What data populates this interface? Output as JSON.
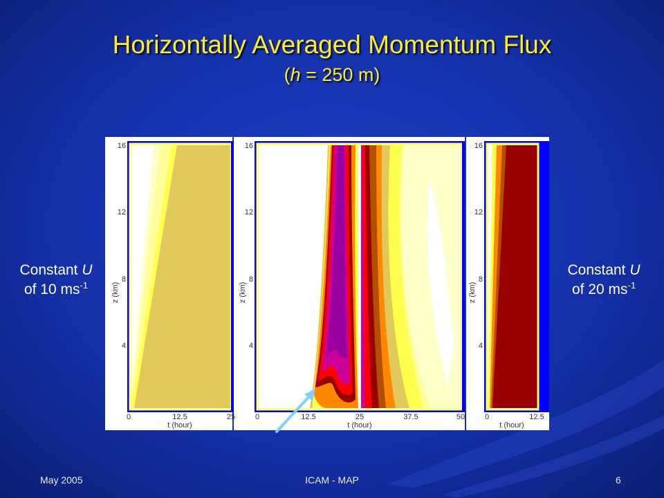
{
  "slide": {
    "title": "Horizontally Averaged Momentum Flux",
    "subtitle_prefix": "(",
    "subtitle_var": "h",
    "subtitle_suffix": " = 250 m)",
    "footer_left": "May 2005",
    "footer_center": "ICAM - MAP",
    "footer_right": "6"
  },
  "labels": {
    "left": {
      "line1_text": "Constant ",
      "line1_var": "U",
      "line2_text": "of 10 ms",
      "line2_sup": "-1"
    },
    "right": {
      "line1_text": "Constant ",
      "line1_var": "U",
      "line2_text": "of 20 ms",
      "line2_sup": "-1"
    }
  },
  "figure": {
    "y_axis_label": "z (km)",
    "x_axis_label": "t (hour)",
    "y_ticks": [
      "16",
      "12",
      "8",
      "4"
    ],
    "panels": [
      {
        "name": "panel-left",
        "x_ticks": [
          "0",
          "12.5",
          "25"
        ]
      },
      {
        "name": "panel-middle",
        "x_ticks": [
          "0",
          "12.5",
          "25",
          "37.5",
          "50"
        ]
      },
      {
        "name": "panel-right",
        "x_ticks": [
          "0",
          "12.5"
        ]
      }
    ],
    "colors": {
      "frame": "#0000ff",
      "white": "#ffffff",
      "pale_yellow": "#ffffc8",
      "light_yellow": "#ffff99",
      "yellow": "#ffff4d",
      "tan": "#e2c85a",
      "khaki": "#d9b000",
      "orange": "#ff8800",
      "brown": "#b05000",
      "red": "#ff0000",
      "dark_red": "#990000",
      "magenta": "#cc0099",
      "purple": "#9900a0",
      "arrow": "#7fd0ff"
    }
  }
}
